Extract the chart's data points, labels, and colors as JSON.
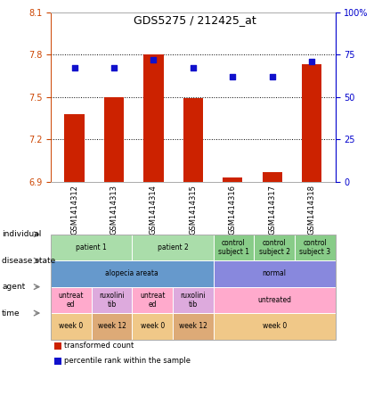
{
  "title": "GDS5275 / 212425_at",
  "samples": [
    "GSM1414312",
    "GSM1414313",
    "GSM1414314",
    "GSM1414315",
    "GSM1414316",
    "GSM1414317",
    "GSM1414318"
  ],
  "bar_values": [
    7.38,
    7.5,
    7.8,
    7.49,
    6.93,
    6.97,
    7.73
  ],
  "scatter_values": [
    67,
    67,
    72,
    67,
    62,
    62,
    71
  ],
  "ylim_left": [
    6.9,
    8.1
  ],
  "ylim_right": [
    0,
    100
  ],
  "yticks_left": [
    6.9,
    7.2,
    7.5,
    7.8,
    8.1
  ],
  "yticks_right": [
    0,
    25,
    50,
    75,
    100
  ],
  "bar_color": "#cc2200",
  "scatter_color": "#1111cc",
  "grid_color": "#000000",
  "bg_color": "#ffffff",
  "plot_bg": "#ffffff",
  "left_tick_color": "#cc4400",
  "right_tick_color": "#0000cc",
  "annotation_rows": [
    {
      "label": "individual",
      "cells": [
        {
          "text": "patient 1",
          "span": 2,
          "color": "#aaddaa"
        },
        {
          "text": "patient 2",
          "span": 2,
          "color": "#aaddaa"
        },
        {
          "text": "control\nsubject 1",
          "span": 1,
          "color": "#88cc88"
        },
        {
          "text": "control\nsubject 2",
          "span": 1,
          "color": "#88cc88"
        },
        {
          "text": "control\nsubject 3",
          "span": 1,
          "color": "#88cc88"
        }
      ]
    },
    {
      "label": "disease state",
      "cells": [
        {
          "text": "alopecia areata",
          "span": 4,
          "color": "#6699cc"
        },
        {
          "text": "normal",
          "span": 3,
          "color": "#8888dd"
        }
      ]
    },
    {
      "label": "agent",
      "cells": [
        {
          "text": "untreat\ned",
          "span": 1,
          "color": "#ffaacc"
        },
        {
          "text": "ruxolini\ntib",
          "span": 1,
          "color": "#ddaadd"
        },
        {
          "text": "untreat\ned",
          "span": 1,
          "color": "#ffaacc"
        },
        {
          "text": "ruxolini\ntib",
          "span": 1,
          "color": "#ddaadd"
        },
        {
          "text": "untreated",
          "span": 3,
          "color": "#ffaacc"
        }
      ]
    },
    {
      "label": "time",
      "cells": [
        {
          "text": "week 0",
          "span": 1,
          "color": "#f0c888"
        },
        {
          "text": "week 12",
          "span": 1,
          "color": "#ddaa77"
        },
        {
          "text": "week 0",
          "span": 1,
          "color": "#f0c888"
        },
        {
          "text": "week 12",
          "span": 1,
          "color": "#ddaa77"
        },
        {
          "text": "week 0",
          "span": 3,
          "color": "#f0c888"
        }
      ]
    }
  ],
  "legend": [
    {
      "color": "#cc2200",
      "label": "transformed count"
    },
    {
      "color": "#1111cc",
      "label": "percentile rank within the sample"
    }
  ]
}
